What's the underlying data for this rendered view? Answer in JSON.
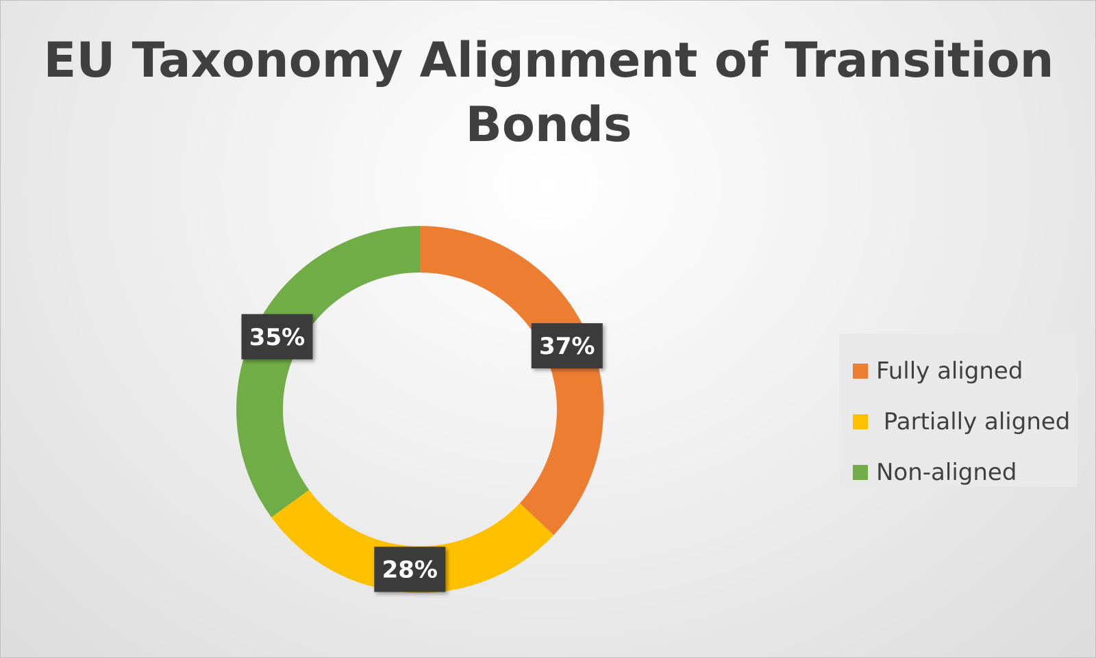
{
  "chart_data": {
    "type": "pie",
    "title": "EU Taxonomy Alignment of Transition Bonds",
    "categories": [
      "Fully aligned",
      " Partially aligned",
      "Non-aligned"
    ],
    "values": [
      37,
      28,
      35
    ],
    "labels": [
      "37%",
      "28%",
      "35%"
    ],
    "colors": [
      "#ed7d31",
      "#ffc000",
      "#70ad47"
    ],
    "legend": "right"
  }
}
